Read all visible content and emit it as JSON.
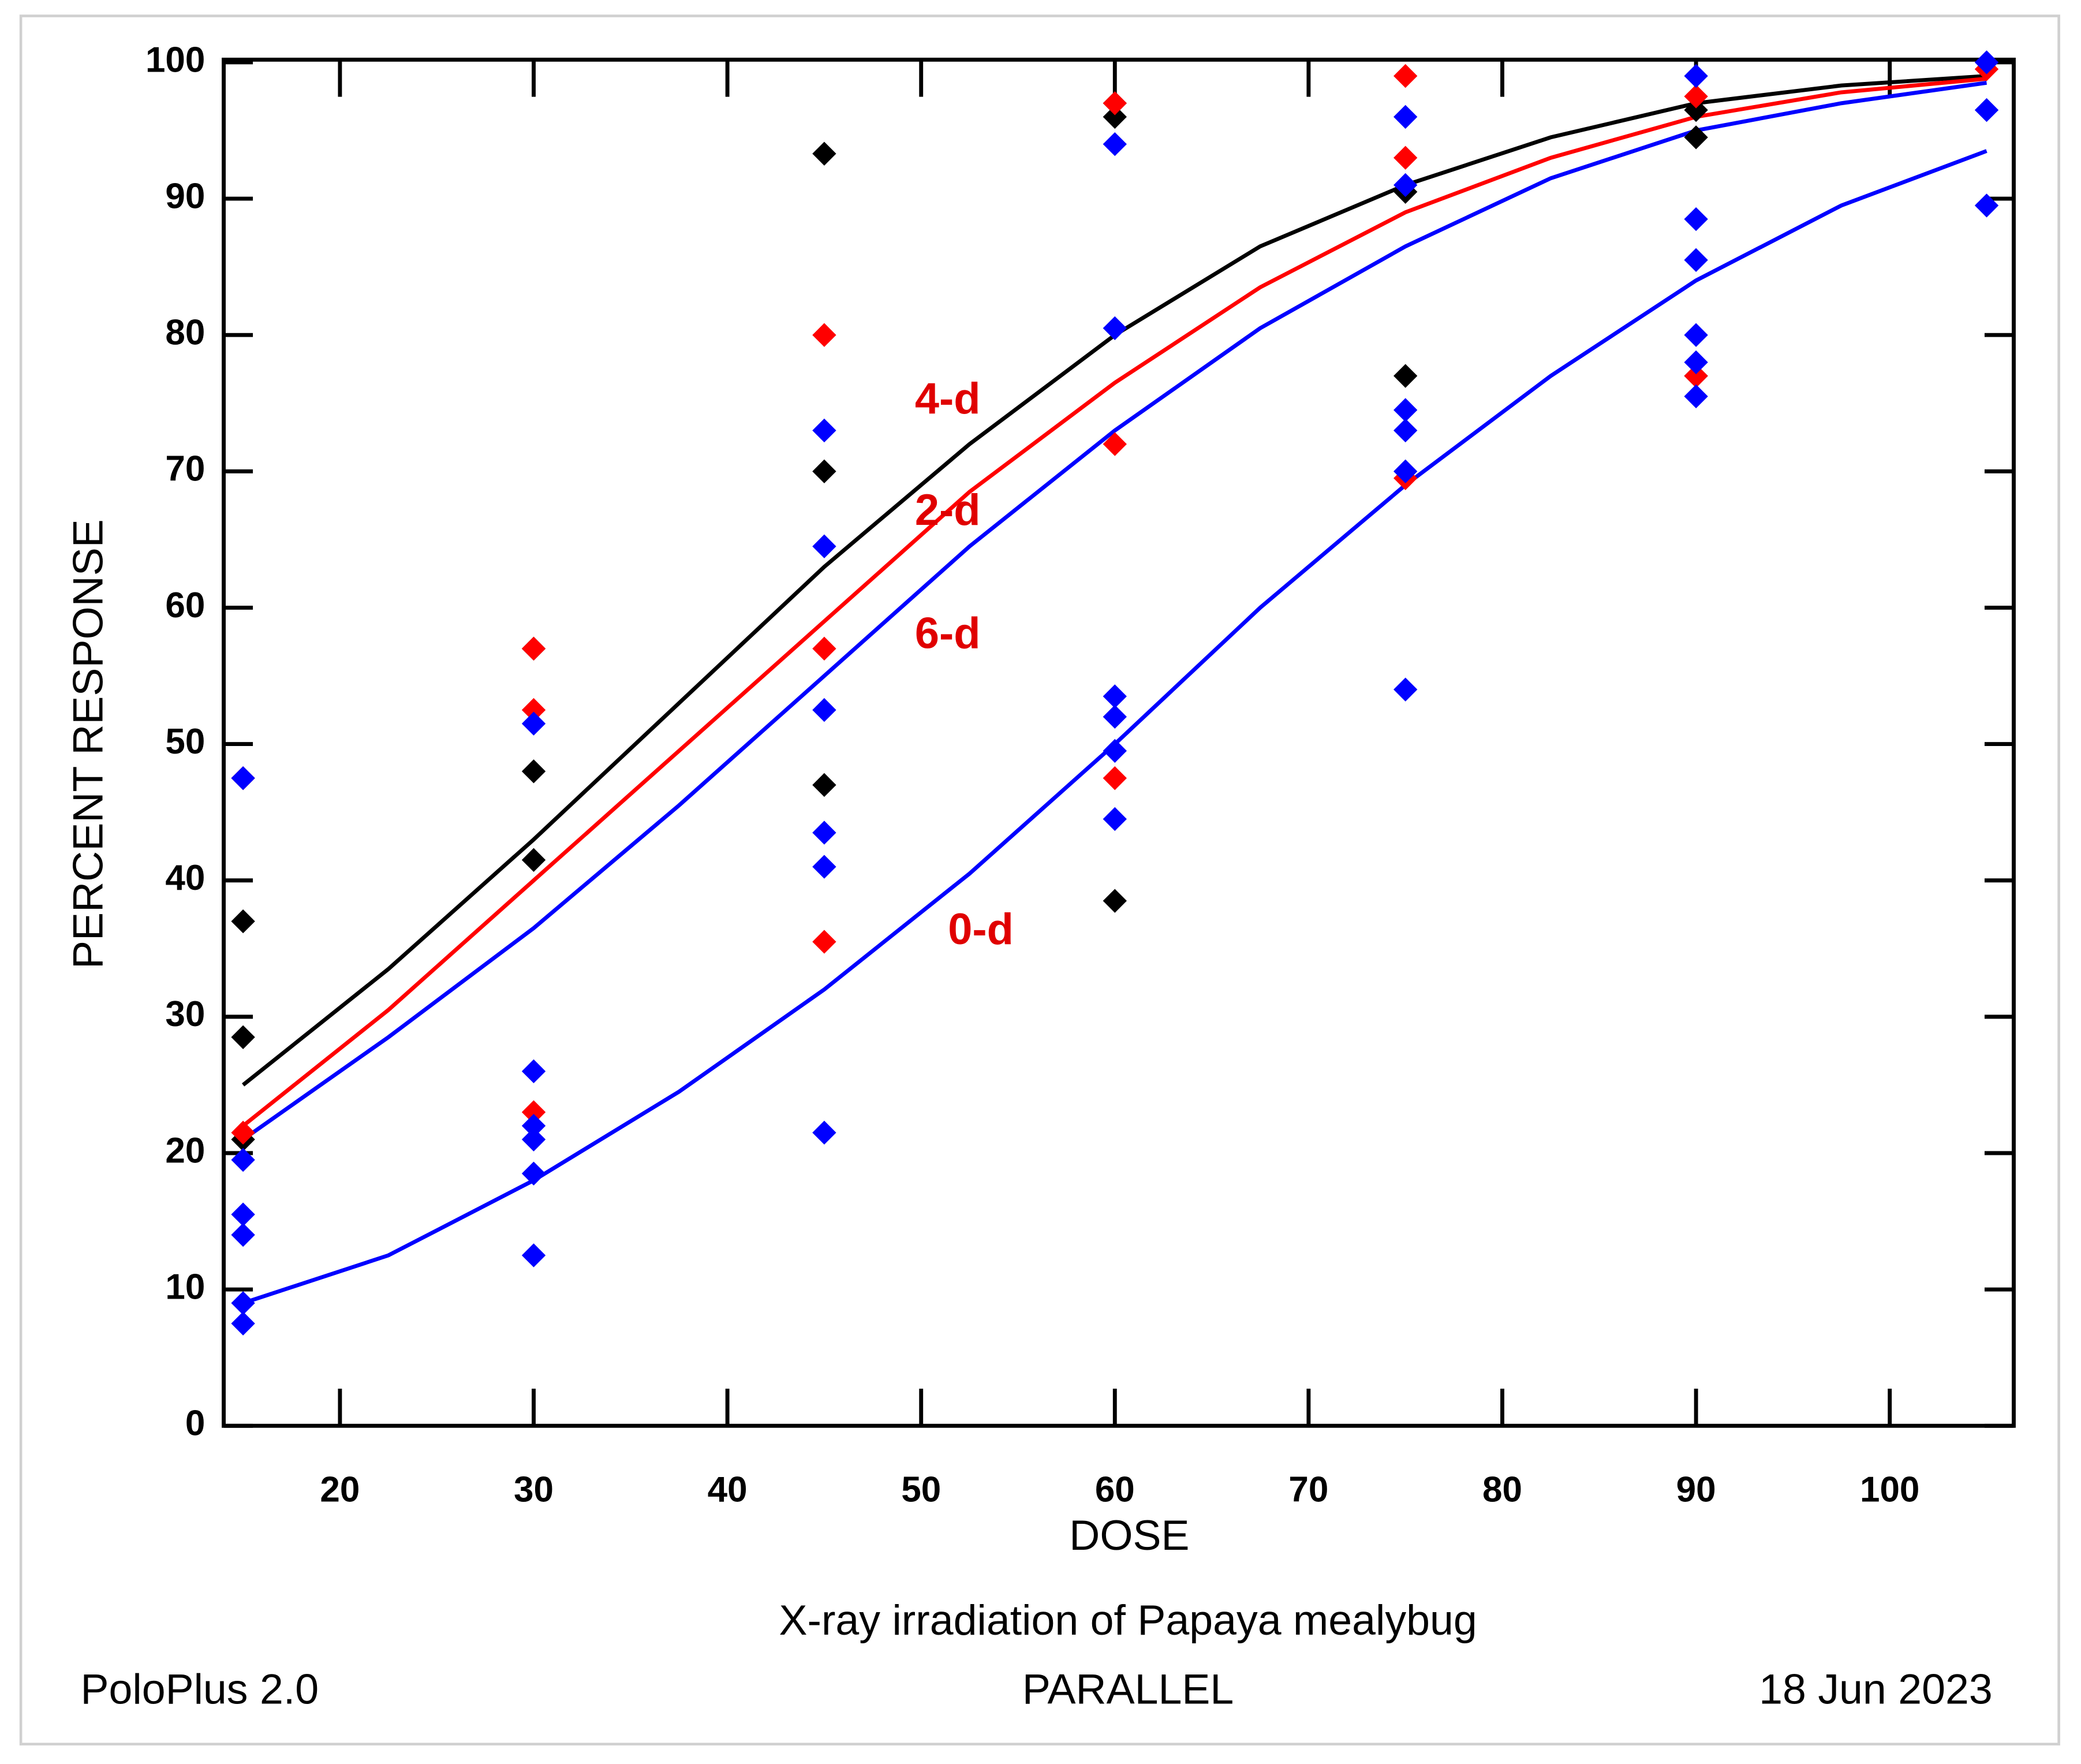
{
  "chart_data": {
    "type": "scatter",
    "xlabel": "DOSE",
    "ylabel": "PERCENT  RESPONSE",
    "subtitle": "X-ray irradiation of Papaya mealybug",
    "footer_left": "PoloPlus 2.0",
    "footer_center": "PARALLEL",
    "footer_right": "18 Jun 2023",
    "xlim": [
      14,
      106.4
    ],
    "ylim": [
      0,
      100
    ],
    "xticks": [
      20,
      30,
      40,
      50,
      60,
      70,
      80,
      90,
      100
    ],
    "yticks": [
      0,
      10,
      20,
      30,
      40,
      50,
      60,
      70,
      80,
      90,
      100
    ],
    "series": [
      {
        "mode": "markers",
        "color": "#000000",
        "x": [
          15,
          15,
          15,
          30,
          30,
          30,
          45,
          45,
          45,
          60,
          60,
          60,
          75,
          75,
          90,
          90,
          90
        ],
        "values": [
          37,
          28.5,
          21,
          57,
          48,
          41.5,
          93.3,
          70,
          47,
          97,
          96,
          38.5,
          90.5,
          77,
          96.5,
          94.5,
          77
        ]
      },
      {
        "mode": "markers",
        "color": "#ff0000",
        "x": [
          15,
          15,
          30,
          30,
          30,
          45,
          45,
          45,
          60,
          60,
          60,
          75,
          75,
          75,
          90,
          90,
          105
        ],
        "values": [
          47.5,
          21.5,
          57,
          52.5,
          23,
          80,
          57,
          35.5,
          97,
          72,
          47.5,
          99,
          93,
          69.5,
          97.5,
          77,
          99.5
        ]
      },
      {
        "mode": "markers",
        "color": "#0000ff",
        "x": [
          15,
          15,
          15,
          15,
          15,
          15,
          30,
          30,
          30,
          30,
          30,
          30,
          45,
          45,
          45,
          45,
          45,
          45,
          60,
          60,
          60,
          60,
          60,
          60,
          75,
          75,
          75,
          75,
          75,
          75,
          90,
          90,
          90,
          90,
          90,
          90,
          105,
          105,
          105
        ],
        "values": [
          47.5,
          19.5,
          15.5,
          14,
          9,
          7.5,
          51.5,
          26,
          22,
          21,
          18.5,
          12.5,
          73,
          64.5,
          52.5,
          43.5,
          41,
          21.5,
          94,
          80.5,
          53.5,
          52,
          49.5,
          44.5,
          96,
          91,
          74.5,
          73,
          70,
          54,
          99,
          88.5,
          85.5,
          80,
          78,
          75.5,
          100,
          96.5,
          89.5
        ]
      },
      {
        "mode": "lines",
        "name": "4-d",
        "color": "#000000",
        "x": [
          15,
          22.5,
          30,
          37.5,
          45,
          52.5,
          60,
          67.5,
          75,
          82.5,
          90,
          97.5,
          105
        ],
        "values": [
          25,
          33.5,
          43,
          53,
          63,
          72,
          80,
          86.5,
          91,
          94.5,
          97,
          98.3,
          99
        ]
      },
      {
        "mode": "lines",
        "name": "2-d",
        "color": "#ff0000",
        "x": [
          15,
          22.5,
          30,
          37.5,
          45,
          52.5,
          60,
          67.5,
          75,
          82.5,
          90,
          97.5,
          105
        ],
        "values": [
          22,
          30.5,
          40,
          49.5,
          59,
          68.5,
          76.5,
          83.5,
          89,
          93,
          96,
          97.8,
          98.8
        ]
      },
      {
        "mode": "lines",
        "name": "6-d",
        "color": "#0000ff",
        "x": [
          15,
          22.5,
          30,
          37.5,
          45,
          52.5,
          60,
          67.5,
          75,
          82.5,
          90,
          97.5,
          105
        ],
        "values": [
          21,
          28.5,
          36.5,
          45.5,
          55,
          64.5,
          73,
          80.5,
          86.5,
          91.5,
          95,
          97,
          98.5
        ]
      },
      {
        "mode": "lines",
        "name": "0-d",
        "color": "#0000ff",
        "x": [
          15,
          22.5,
          30,
          37.5,
          45,
          52.5,
          60,
          67.5,
          75,
          82.5,
          90,
          97.5,
          105
        ],
        "values": [
          9,
          12.5,
          18,
          24.5,
          32,
          40.5,
          50,
          60,
          69,
          77,
          84,
          89.5,
          93.5
        ]
      }
    ]
  }
}
